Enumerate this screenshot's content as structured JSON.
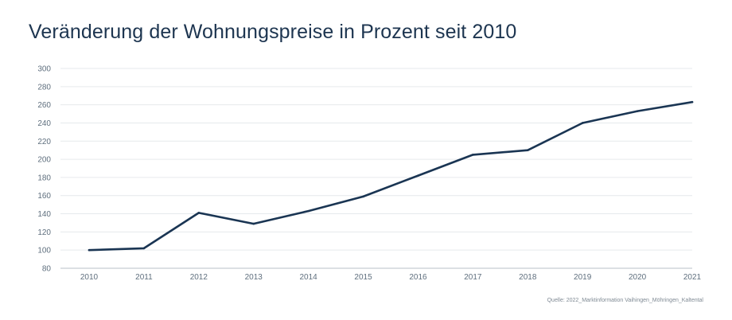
{
  "chart_data": {
    "type": "line",
    "title": "Veränderung der Wohnungspreise in Prozent seit 2010",
    "x": [
      "2010",
      "2011",
      "2012",
      "2013",
      "2014",
      "2015",
      "2016",
      "2017",
      "2018",
      "2019",
      "2020",
      "2021"
    ],
    "series": [
      {
        "values": [
          100,
          102,
          141,
          129,
          143,
          159,
          182,
          205,
          210,
          240,
          253,
          263
        ],
        "color": "#1a3553"
      }
    ],
    "yticks": [
      "80",
      "100",
      "120",
      "140",
      "160",
      "180",
      "200",
      "220",
      "240",
      "260",
      "280",
      "300"
    ],
    "ylim": [
      80,
      300
    ],
    "grid": true,
    "source": "Quelle: 2022_Marktinformation Vaihingen_Möhringen_Kaltental"
  }
}
